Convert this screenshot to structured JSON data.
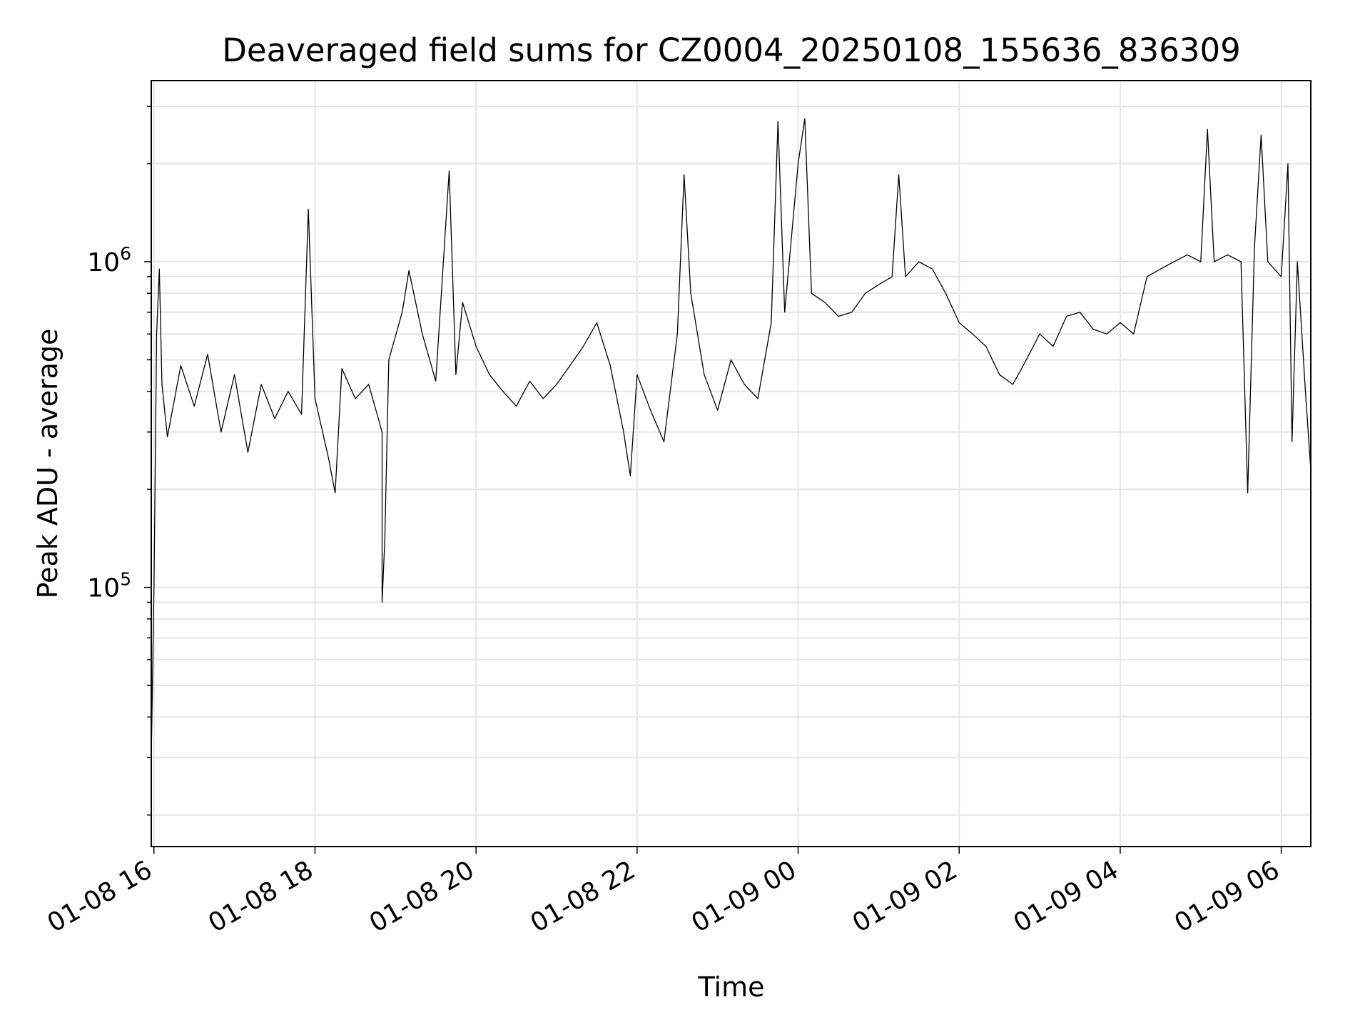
{
  "chart_data": {
    "type": "line",
    "title": "Deaveraged field sums for CZ0004_20250108_155636_836309",
    "xlabel": "Time",
    "ylabel": "Peak ADU - average",
    "y_scale": "log",
    "ylim": [
      16000,
      3600000
    ],
    "xlim": [
      "2025-01-08 15:58",
      "2025-01-09 06:22"
    ],
    "grid": true,
    "grid_color": "#e6e6e6",
    "line_color": "#000000",
    "x_ticks": [
      {
        "t": "2025-01-08 16:00",
        "label": "01-08 16"
      },
      {
        "t": "2025-01-08 18:00",
        "label": "01-08 18"
      },
      {
        "t": "2025-01-08 20:00",
        "label": "01-08 20"
      },
      {
        "t": "2025-01-08 22:00",
        "label": "01-08 22"
      },
      {
        "t": "2025-01-09 00:00",
        "label": "01-09 00"
      },
      {
        "t": "2025-01-09 02:00",
        "label": "01-09 02"
      },
      {
        "t": "2025-01-09 04:00",
        "label": "01-09 04"
      },
      {
        "t": "2025-01-09 06:00",
        "label": "01-09 06"
      }
    ],
    "y_ticks": [
      {
        "value": 100000,
        "base": "10",
        "exp": "5"
      },
      {
        "value": 1000000,
        "base": "10",
        "exp": "6"
      }
    ],
    "series": [
      {
        "points": [
          [
            "2025-01-08 15:58",
            30000
          ],
          [
            "2025-01-08 16:00",
            100000
          ],
          [
            "2025-01-08 16:02",
            600000
          ],
          [
            "2025-01-08 16:04",
            950000
          ],
          [
            "2025-01-08 16:06",
            420000
          ],
          [
            "2025-01-08 16:10",
            290000
          ],
          [
            "2025-01-08 16:20",
            480000
          ],
          [
            "2025-01-08 16:30",
            360000
          ],
          [
            "2025-01-08 16:40",
            520000
          ],
          [
            "2025-01-08 16:50",
            300000
          ],
          [
            "2025-01-08 17:00",
            450000
          ],
          [
            "2025-01-08 17:10",
            260000
          ],
          [
            "2025-01-08 17:20",
            420000
          ],
          [
            "2025-01-08 17:30",
            330000
          ],
          [
            "2025-01-08 17:40",
            400000
          ],
          [
            "2025-01-08 17:50",
            340000
          ],
          [
            "2025-01-08 17:55",
            1450000
          ],
          [
            "2025-01-08 18:00",
            380000
          ],
          [
            "2025-01-08 18:10",
            250000
          ],
          [
            "2025-01-08 18:15",
            195000
          ],
          [
            "2025-01-08 18:20",
            470000
          ],
          [
            "2025-01-08 18:30",
            380000
          ],
          [
            "2025-01-08 18:40",
            420000
          ],
          [
            "2025-01-08 18:50",
            300000
          ],
          [
            "2025-01-08 18:50",
            90000
          ],
          [
            "2025-01-08 18:52",
            140000
          ],
          [
            "2025-01-08 18:55",
            500000
          ],
          [
            "2025-01-08 19:05",
            700000
          ],
          [
            "2025-01-08 19:10",
            940000
          ],
          [
            "2025-01-08 19:20",
            600000
          ],
          [
            "2025-01-08 19:30",
            430000
          ],
          [
            "2025-01-08 19:40",
            1900000
          ],
          [
            "2025-01-08 19:45",
            450000
          ],
          [
            "2025-01-08 19:50",
            750000
          ],
          [
            "2025-01-08 20:00",
            550000
          ],
          [
            "2025-01-08 20:10",
            450000
          ],
          [
            "2025-01-08 20:20",
            400000
          ],
          [
            "2025-01-08 20:30",
            360000
          ],
          [
            "2025-01-08 20:40",
            430000
          ],
          [
            "2025-01-08 20:50",
            380000
          ],
          [
            "2025-01-08 21:00",
            420000
          ],
          [
            "2025-01-08 21:10",
            480000
          ],
          [
            "2025-01-08 21:20",
            550000
          ],
          [
            "2025-01-08 21:30",
            650000
          ],
          [
            "2025-01-08 21:40",
            480000
          ],
          [
            "2025-01-08 21:50",
            300000
          ],
          [
            "2025-01-08 21:55",
            220000
          ],
          [
            "2025-01-08 22:00",
            450000
          ],
          [
            "2025-01-08 22:10",
            350000
          ],
          [
            "2025-01-08 22:20",
            280000
          ],
          [
            "2025-01-08 22:30",
            600000
          ],
          [
            "2025-01-08 22:35",
            1850000
          ],
          [
            "2025-01-08 22:40",
            800000
          ],
          [
            "2025-01-08 22:50",
            450000
          ],
          [
            "2025-01-08 23:00",
            350000
          ],
          [
            "2025-01-08 23:10",
            500000
          ],
          [
            "2025-01-08 23:20",
            420000
          ],
          [
            "2025-01-08 23:30",
            380000
          ],
          [
            "2025-01-08 23:40",
            650000
          ],
          [
            "2025-01-08 23:45",
            2700000
          ],
          [
            "2025-01-08 23:50",
            700000
          ],
          [
            "2025-01-09 00:00",
            2000000
          ],
          [
            "2025-01-09 00:05",
            2750000
          ],
          [
            "2025-01-09 00:10",
            800000
          ],
          [
            "2025-01-09 00:20",
            750000
          ],
          [
            "2025-01-09 00:30",
            680000
          ],
          [
            "2025-01-09 00:40",
            700000
          ],
          [
            "2025-01-09 00:50",
            800000
          ],
          [
            "2025-01-09 01:00",
            850000
          ],
          [
            "2025-01-09 01:10",
            900000
          ],
          [
            "2025-01-09 01:15",
            1850000
          ],
          [
            "2025-01-09 01:20",
            900000
          ],
          [
            "2025-01-09 01:30",
            1000000
          ],
          [
            "2025-01-09 01:40",
            950000
          ],
          [
            "2025-01-09 01:50",
            800000
          ],
          [
            "2025-01-09 02:00",
            650000
          ],
          [
            "2025-01-09 02:10",
            600000
          ],
          [
            "2025-01-09 02:20",
            550000
          ],
          [
            "2025-01-09 02:30",
            450000
          ],
          [
            "2025-01-09 02:40",
            420000
          ],
          [
            "2025-01-09 02:50",
            500000
          ],
          [
            "2025-01-09 03:00",
            600000
          ],
          [
            "2025-01-09 03:10",
            550000
          ],
          [
            "2025-01-09 03:20",
            680000
          ],
          [
            "2025-01-09 03:30",
            700000
          ],
          [
            "2025-01-09 03:40",
            620000
          ],
          [
            "2025-01-09 03:50",
            600000
          ],
          [
            "2025-01-09 04:00",
            650000
          ],
          [
            "2025-01-09 04:10",
            600000
          ],
          [
            "2025-01-09 04:20",
            900000
          ],
          [
            "2025-01-09 04:30",
            950000
          ],
          [
            "2025-01-09 04:40",
            1000000
          ],
          [
            "2025-01-09 04:50",
            1050000
          ],
          [
            "2025-01-09 05:00",
            1000000
          ],
          [
            "2025-01-09 05:05",
            2550000
          ],
          [
            "2025-01-09 05:10",
            1000000
          ],
          [
            "2025-01-09 05:20",
            1050000
          ],
          [
            "2025-01-09 05:30",
            1000000
          ],
          [
            "2025-01-09 05:35",
            195000
          ],
          [
            "2025-01-09 05:40",
            1100000
          ],
          [
            "2025-01-09 05:45",
            2450000
          ],
          [
            "2025-01-09 05:50",
            1000000
          ],
          [
            "2025-01-09 06:00",
            900000
          ],
          [
            "2025-01-09 06:05",
            2000000
          ],
          [
            "2025-01-09 06:08",
            280000
          ],
          [
            "2025-01-09 06:12",
            1000000
          ],
          [
            "2025-01-09 06:18",
            400000
          ],
          [
            "2025-01-09 06:22",
            230000
          ]
        ]
      }
    ]
  }
}
